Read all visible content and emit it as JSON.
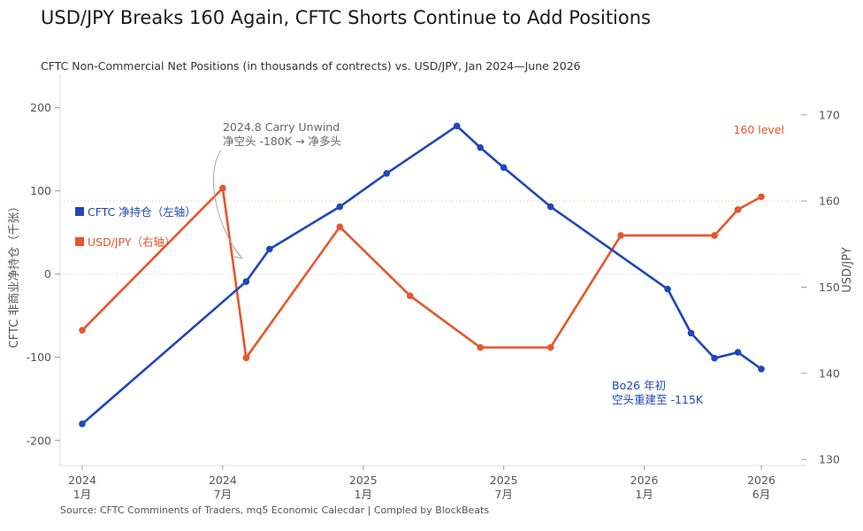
{
  "title": "USD/JPY Breaks 160 Again, CFTC Shorts Continue to Add Positions",
  "subtitle": "CFTC Non-Commercial Net Positions (in thousands of contrects)  vs. USD/JPY, Jan 2024—June 2026",
  "source": "Source: CFTC Comminents of Traders, mq5 Economic Calecdar | Compled by BlockBeats",
  "colors": {
    "cftc": "#1f47b8",
    "usdjpy": "#e8552a",
    "annotation": "#e8552a",
    "grid": "#e5e5e5"
  },
  "chart_data": {
    "type": "line",
    "x_range": [
      0,
      29
    ],
    "x_ticks": [
      {
        "x": 0,
        "line1": "2024",
        "line2": "1月"
      },
      {
        "x": 6,
        "line1": "2024",
        "line2": "7月"
      },
      {
        "x": 12,
        "line1": "2025",
        "line2": "1月"
      },
      {
        "x": 18,
        "line1": "2025",
        "line2": "7月"
      },
      {
        "x": 24,
        "line1": "2026",
        "line2": "1月"
      },
      {
        "x": 29,
        "line1": "2026",
        "line2": "6月"
      }
    ],
    "y_left": {
      "label": "CFTC 非商业净持仓（千张）",
      "range": [
        -230,
        240
      ],
      "ticks": [
        200,
        100,
        0,
        -100,
        -200
      ]
    },
    "y_right": {
      "label": "USD/JPY",
      "range": [
        129.3,
        174.7
      ],
      "ticks": [
        170,
        160,
        150,
        140,
        130
      ]
    },
    "reference_line": {
      "axis": "right",
      "value": 160,
      "label": "160 level"
    },
    "zero_line": {
      "axis": "left",
      "value": 0
    },
    "series": [
      {
        "name": "CFTC 净持仓（左轴）",
        "axis": "left",
        "x": [
          0,
          7,
          8,
          11,
          13,
          16,
          17,
          18,
          20,
          25,
          26,
          27,
          28,
          29
        ],
        "values": [
          -180,
          -9,
          30,
          81,
          121,
          178,
          152,
          128,
          81,
          -18,
          -71,
          -101,
          -94,
          -114
        ]
      },
      {
        "name": "USD/JPY（右轴）",
        "axis": "right",
        "x": [
          0,
          6,
          7,
          11,
          14,
          17,
          20,
          23,
          27,
          28,
          29
        ],
        "values": [
          145,
          161.5,
          141.8,
          157,
          149,
          143,
          143,
          156,
          156,
          159,
          160.5
        ]
      }
    ],
    "annotations": [
      {
        "lines": [
          "2024.8 Carry Unwind",
          "净空头 -180K → 净多头"
        ]
      },
      {
        "lines": [
          "Bo26 年初",
          "空头重建至 -115K"
        ]
      }
    ],
    "grid": false
  }
}
